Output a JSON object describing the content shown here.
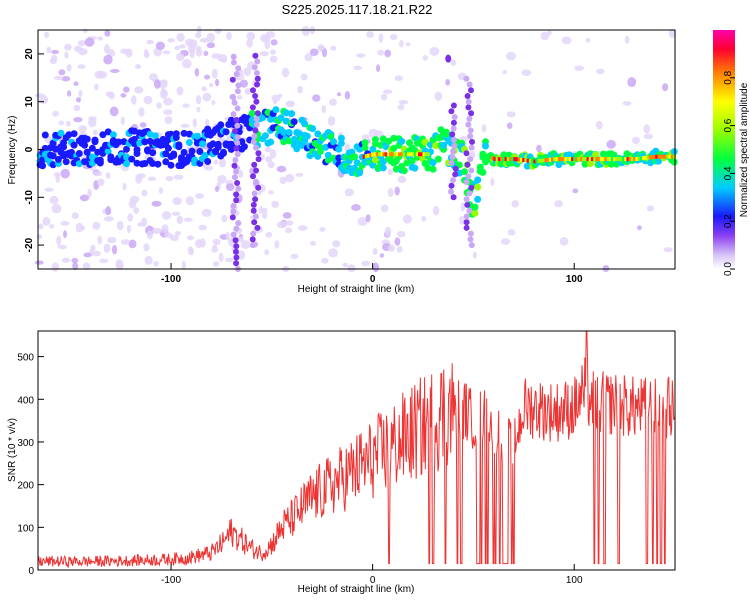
{
  "title": "S225.2025.117.18.21.R22",
  "colorbar": {
    "label": "Normalized spectral amplitude",
    "range": [
      0.0,
      1.0
    ],
    "ticks": [
      "0.0",
      "0.2",
      "0.4",
      "0.6",
      "0.8"
    ]
  },
  "chart_data": [
    {
      "type": "heatmap",
      "xlabel": "Height of straight line (km)",
      "ylabel": "Frequency (Hz)",
      "xlim": [
        -166,
        150
      ],
      "ylim": [
        -25,
        25
      ],
      "xticks": [
        "-100",
        "0",
        "100"
      ],
      "yticks": [
        "-20",
        "-10",
        "0",
        "10",
        "20"
      ],
      "colormap": "rainbow, white at 0",
      "ridge": {
        "description_source": "visual estimate of the dominant frequency band",
        "x": [
          -160,
          -120,
          -90,
          -80,
          -70,
          -60,
          -50,
          -45,
          -40,
          -30,
          -20,
          -10,
          0,
          10,
          20,
          30,
          35,
          40,
          45,
          50,
          55,
          60,
          70,
          80,
          90,
          100,
          110,
          120,
          130,
          140,
          148
        ],
        "y": [
          0,
          0.5,
          0,
          1,
          3,
          4,
          5,
          5,
          4,
          2,
          0,
          -2,
          -1,
          -1,
          -1,
          -1,
          2,
          -1,
          -2,
          -12,
          -1,
          -2,
          -2,
          -2.5,
          -2,
          -2,
          -2,
          -2,
          -2,
          -1.5,
          -1.5
        ]
      }
    },
    {
      "type": "line",
      "xlabel": "Height of straight line (km)",
      "ylabel": "SNR (10 * v/v)",
      "xlim": [
        -166,
        150
      ],
      "ylim": [
        0,
        560
      ],
      "xticks": [
        "-100",
        "0",
        "100"
      ],
      "yticks": [
        "0",
        "100",
        "200",
        "300",
        "400",
        "500"
      ],
      "color": "#ee3333",
      "series": [
        {
          "x": [
            -166,
            -140,
            -120,
            -100,
            -90,
            -80,
            -75,
            -70,
            -65,
            -60,
            -55,
            -50,
            -45,
            -40,
            -30,
            -20,
            -10,
            0,
            10,
            20,
            30,
            35,
            40,
            45,
            50,
            55,
            60,
            65,
            70,
            75,
            80,
            90,
            100,
            105,
            110,
            120,
            130,
            140,
            150
          ],
          "values": [
            20,
            20,
            22,
            25,
            30,
            40,
            60,
            90,
            70,
            50,
            40,
            60,
            100,
            120,
            170,
            200,
            230,
            260,
            290,
            320,
            350,
            370,
            380,
            380,
            350,
            360,
            340,
            310,
            290,
            380,
            380,
            370,
            380,
            420,
            390,
            390,
            380,
            380,
            380
          ]
        }
      ],
      "dropouts_x": [
        8,
        28,
        30,
        36,
        42,
        44,
        52,
        53,
        54,
        56,
        57,
        60,
        61,
        63,
        65,
        66,
        67,
        69,
        70,
        106,
        110,
        112,
        115,
        122,
        136,
        139,
        141,
        143,
        145
      ],
      "spike": {
        "x": 106,
        "y": 560
      }
    }
  ]
}
